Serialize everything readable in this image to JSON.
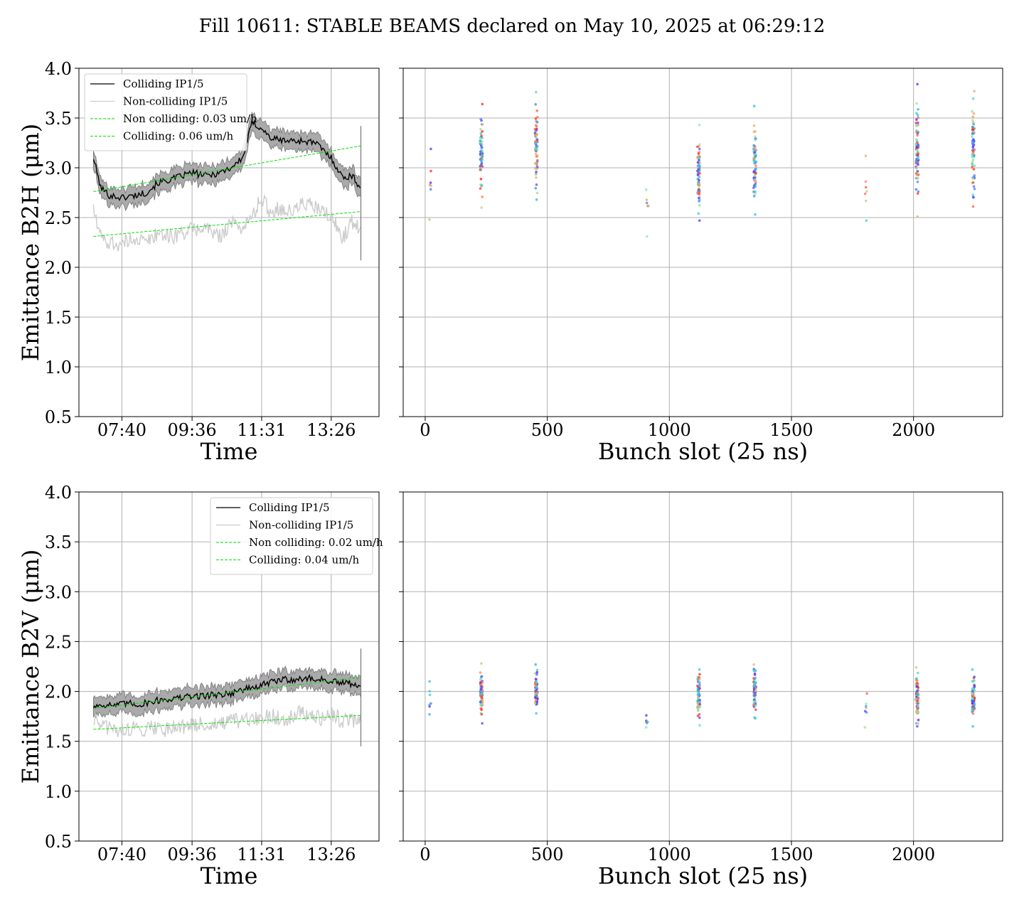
{
  "figure": {
    "title": "Fill 10611: STABLE BEAMS declared on May 10, 2025 at 06:29:12"
  },
  "colors": {
    "colliding": "#000000",
    "non_colliding": "#cccccc",
    "band": "#aaaaaa",
    "fit": "#00e000",
    "grid": "#b0b0b0"
  },
  "chart_data": [
    {
      "id": "b2h-time",
      "type": "line",
      "xlabel": "Time",
      "ylabel": "Emittance B2H (μm)",
      "ylim": [
        0.5,
        4.0
      ],
      "yticks": [
        "0.5",
        "1.0",
        "1.5",
        "2.0",
        "2.5",
        "3.0",
        "3.5",
        "4.0"
      ],
      "xlim": [
        "06:29",
        "14:45"
      ],
      "xticks": [
        {
          "time": "07:40",
          "label": "07:40"
        },
        {
          "time": "09:36",
          "label": "09:36"
        },
        {
          "time": "11:31",
          "label": "11:31"
        },
        {
          "time": "13:26",
          "label": "13:26"
        }
      ],
      "grid": true,
      "legend_position": "upper-left",
      "legend": [
        {
          "label": "Colliding IP1/5",
          "style": "solid-black"
        },
        {
          "label": "Non-colliding IP1/5",
          "style": "solid-gray"
        },
        {
          "label": "Non colliding: 0.03 um/h",
          "style": "dashed-green"
        },
        {
          "label": "Colliding: 0.06 um/h",
          "style": "dashed-green"
        }
      ],
      "series": [
        {
          "name": "Colliding IP1/5",
          "kind": "line",
          "x": [
            "06:53",
            "07:05",
            "07:20",
            "07:40",
            "08:00",
            "08:20",
            "08:40",
            "09:00",
            "09:20",
            "09:36",
            "10:00",
            "10:20",
            "10:40",
            "11:00",
            "11:15",
            "11:31",
            "11:45",
            "12:00",
            "12:20",
            "12:40",
            "13:00",
            "13:26",
            "13:45",
            "14:00",
            "14:15"
          ],
          "y": [
            3.1,
            2.8,
            2.72,
            2.7,
            2.72,
            2.75,
            2.85,
            2.88,
            2.92,
            2.95,
            2.92,
            2.95,
            3.0,
            3.1,
            3.45,
            3.4,
            3.3,
            3.28,
            3.27,
            3.27,
            3.25,
            3.1,
            2.9,
            2.92,
            2.8
          ]
        },
        {
          "name": "Non-colliding IP1/5",
          "kind": "line",
          "x": [
            "06:53",
            "07:05",
            "07:20",
            "07:40",
            "08:00",
            "08:20",
            "08:40",
            "09:00",
            "09:20",
            "09:36",
            "10:00",
            "10:20",
            "10:40",
            "11:00",
            "11:15",
            "11:31",
            "11:45",
            "12:00",
            "12:20",
            "12:40",
            "13:00",
            "13:26",
            "13:45",
            "14:00",
            "14:15"
          ],
          "y": [
            2.6,
            2.3,
            2.25,
            2.22,
            2.3,
            2.25,
            2.35,
            2.3,
            2.35,
            2.38,
            2.4,
            2.3,
            2.45,
            2.4,
            2.5,
            2.7,
            2.55,
            2.6,
            2.55,
            2.65,
            2.6,
            2.5,
            2.3,
            2.45,
            2.4
          ]
        },
        {
          "name": "Non colliding: 0.03 um/h",
          "kind": "fit",
          "x": [
            "06:53",
            "14:15"
          ],
          "y": [
            2.31,
            2.56
          ]
        },
        {
          "name": "Colliding: 0.06 um/h",
          "kind": "fit",
          "x": [
            "06:53",
            "14:15"
          ],
          "y": [
            2.76,
            3.22
          ]
        }
      ]
    },
    {
      "id": "b2h-slot",
      "type": "scatter",
      "xlabel": "Bunch slot (25 ns)",
      "ylabel": "",
      "ylim": [
        0.5,
        4.0
      ],
      "xlim": [
        -90,
        2365
      ],
      "xticks": [
        "0",
        "500",
        "1000",
        "1500",
        "2000"
      ],
      "grid": true,
      "trains": [
        {
          "slot": 20,
          "min": 2.48,
          "max": 3.19,
          "count": 7
        },
        {
          "slot": 230,
          "min": 2.6,
          "max": 3.64,
          "count": 70
        },
        {
          "slot": 455,
          "min": 2.68,
          "max": 3.76,
          "count": 70
        },
        {
          "slot": 910,
          "min": 2.31,
          "max": 2.78,
          "count": 6
        },
        {
          "slot": 1120,
          "min": 2.47,
          "max": 3.43,
          "count": 70
        },
        {
          "slot": 1350,
          "min": 2.53,
          "max": 3.62,
          "count": 70
        },
        {
          "slot": 1805,
          "min": 2.47,
          "max": 3.12,
          "count": 7
        },
        {
          "slot": 2015,
          "min": 2.51,
          "max": 3.84,
          "count": 80
        },
        {
          "slot": 2245,
          "min": 2.61,
          "max": 3.77,
          "count": 80
        }
      ]
    },
    {
      "id": "b2v-time",
      "type": "line",
      "xlabel": "Time",
      "ylabel": "Emittance B2V (μm)",
      "ylim": [
        0.5,
        4.0
      ],
      "yticks": [
        "0.5",
        "1.0",
        "1.5",
        "2.0",
        "2.5",
        "3.0",
        "3.5",
        "4.0"
      ],
      "xlim": [
        "06:29",
        "14:45"
      ],
      "xticks": [
        {
          "time": "07:40",
          "label": "07:40"
        },
        {
          "time": "09:36",
          "label": "09:36"
        },
        {
          "time": "11:31",
          "label": "11:31"
        },
        {
          "time": "13:26",
          "label": "13:26"
        }
      ],
      "grid": true,
      "legend_position": "upper-right",
      "legend": [
        {
          "label": "Colliding IP1/5",
          "style": "solid-black"
        },
        {
          "label": "Non-colliding IP1/5",
          "style": "solid-gray"
        },
        {
          "label": "Non colliding: 0.02 um/h",
          "style": "dashed-green"
        },
        {
          "label": "Colliding: 0.04 um/h",
          "style": "dashed-green"
        }
      ],
      "series": [
        {
          "name": "Colliding IP1/5",
          "kind": "line",
          "x": [
            "06:53",
            "07:10",
            "07:30",
            "07:50",
            "08:10",
            "08:30",
            "08:50",
            "09:10",
            "09:36",
            "10:00",
            "10:20",
            "10:40",
            "11:00",
            "11:20",
            "11:31",
            "11:50",
            "12:10",
            "12:30",
            "12:50",
            "13:10",
            "13:26",
            "13:45",
            "14:00",
            "14:15"
          ],
          "y": [
            1.85,
            1.87,
            1.86,
            1.88,
            1.87,
            1.9,
            1.92,
            1.93,
            1.95,
            1.96,
            1.97,
            1.98,
            2.02,
            2.04,
            2.06,
            2.1,
            2.12,
            2.12,
            2.13,
            2.12,
            2.1,
            2.08,
            2.08,
            2.05
          ]
        },
        {
          "name": "Non-colliding IP1/5",
          "kind": "line",
          "x": [
            "06:53",
            "07:10",
            "07:30",
            "07:50",
            "08:10",
            "08:30",
            "08:50",
            "09:10",
            "09:36",
            "10:00",
            "10:20",
            "10:40",
            "11:00",
            "11:20",
            "11:31",
            "11:50",
            "12:10",
            "12:30",
            "12:50",
            "13:10",
            "13:26",
            "13:45",
            "14:00",
            "14:15"
          ],
          "y": [
            1.72,
            1.65,
            1.6,
            1.63,
            1.62,
            1.65,
            1.62,
            1.66,
            1.65,
            1.68,
            1.66,
            1.7,
            1.7,
            1.72,
            1.74,
            1.75,
            1.72,
            1.8,
            1.76,
            1.72,
            1.78,
            1.7,
            1.72,
            1.7
          ]
        },
        {
          "name": "Non colliding: 0.02 um/h",
          "kind": "fit",
          "x": [
            "06:53",
            "14:15"
          ],
          "y": [
            1.62,
            1.76
          ]
        },
        {
          "name": "Colliding: 0.04 um/h",
          "kind": "fit",
          "x": [
            "06:53",
            "14:15"
          ],
          "y": [
            1.83,
            2.14
          ]
        }
      ]
    },
    {
      "id": "b2v-slot",
      "type": "scatter",
      "xlabel": "Bunch slot (25 ns)",
      "ylabel": "",
      "ylim": [
        0.5,
        4.0
      ],
      "xlim": [
        -90,
        2365
      ],
      "xticks": [
        "0",
        "500",
        "1000",
        "1500",
        "2000"
      ],
      "grid": true,
      "trains": [
        {
          "slot": 20,
          "min": 1.77,
          "max": 2.1,
          "count": 7
        },
        {
          "slot": 230,
          "min": 1.68,
          "max": 2.28,
          "count": 70
        },
        {
          "slot": 455,
          "min": 1.78,
          "max": 2.27,
          "count": 70
        },
        {
          "slot": 910,
          "min": 1.64,
          "max": 1.76,
          "count": 6
        },
        {
          "slot": 1120,
          "min": 1.66,
          "max": 2.22,
          "count": 70
        },
        {
          "slot": 1350,
          "min": 1.73,
          "max": 2.27,
          "count": 70
        },
        {
          "slot": 1805,
          "min": 1.64,
          "max": 1.98,
          "count": 7
        },
        {
          "slot": 2015,
          "min": 1.65,
          "max": 2.24,
          "count": 80
        },
        {
          "slot": 2245,
          "min": 1.65,
          "max": 2.22,
          "count": 80
        }
      ]
    }
  ]
}
